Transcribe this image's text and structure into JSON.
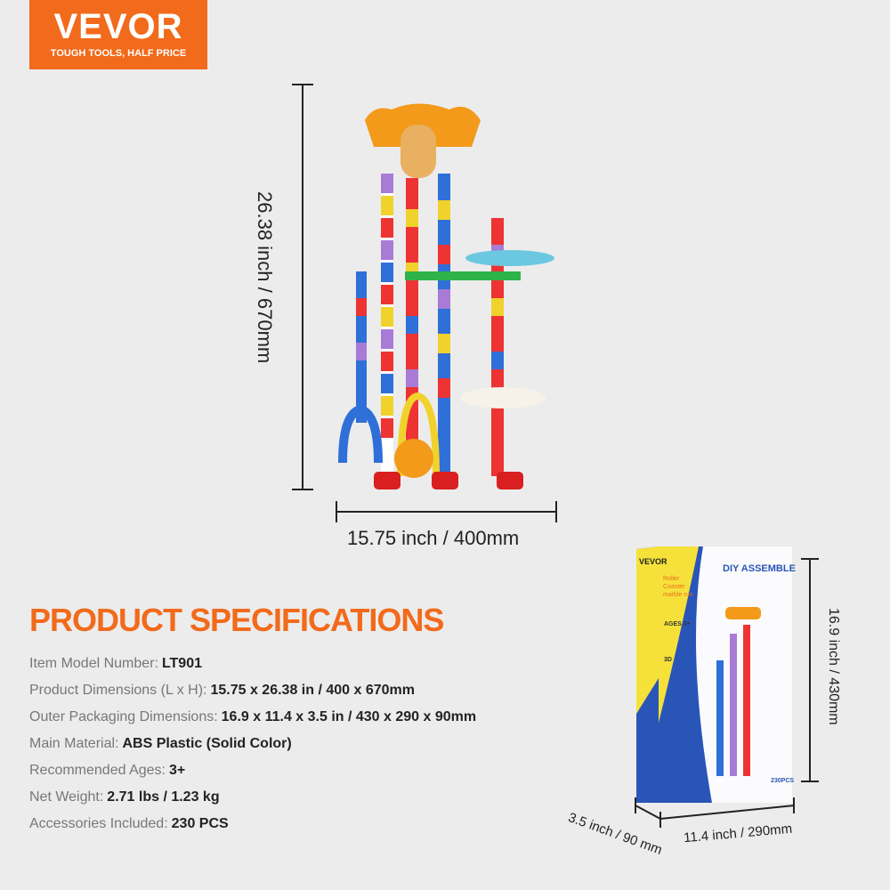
{
  "logo": {
    "brand": "VEVOR",
    "registered": "®",
    "tagline": "TOUGH TOOLS, HALF PRICE"
  },
  "product_dims": {
    "height": "26.38 inch / 670mm",
    "width": "15.75 inch /  400mm"
  },
  "package_dims": {
    "height": "16.9 inch / 430mm",
    "width": "11.4 inch / 290mm",
    "depth": "3.5 inch / 90 mm"
  },
  "box": {
    "brand": "VEVOR",
    "headline": "DIY ASSEMBLE",
    "line1": "Roller",
    "line2": "Coaster",
    "line3": "marble run",
    "ages": "AGES 3+",
    "model": "3D",
    "pieces": "230PCS"
  },
  "specs": {
    "title": "PRODUCT SPECIFICATIONS",
    "rows": [
      {
        "label": "Item Model Number:",
        "value": "LT901"
      },
      {
        "label": "Product Dimensions (L x H):",
        "value": "15.75 x 26.38 in / 400 x 670mm"
      },
      {
        "label": "Outer Packaging Dimensions:",
        "value": "16.9 x 11.4 x 3.5 in / 430 x 290 x 90mm"
      },
      {
        "label": "Main Material:",
        "value": "ABS Plastic (Solid Color)"
      },
      {
        "label": "Recommended Ages:",
        "value": "3+"
      },
      {
        "label": "Net Weight:",
        "value": "2.71 lbs / 1.23 kg"
      },
      {
        "label": "Accessories Included:",
        "value": "230 PCS"
      }
    ]
  },
  "colors": {
    "brand": "#f26a1b",
    "background": "#ececec"
  }
}
